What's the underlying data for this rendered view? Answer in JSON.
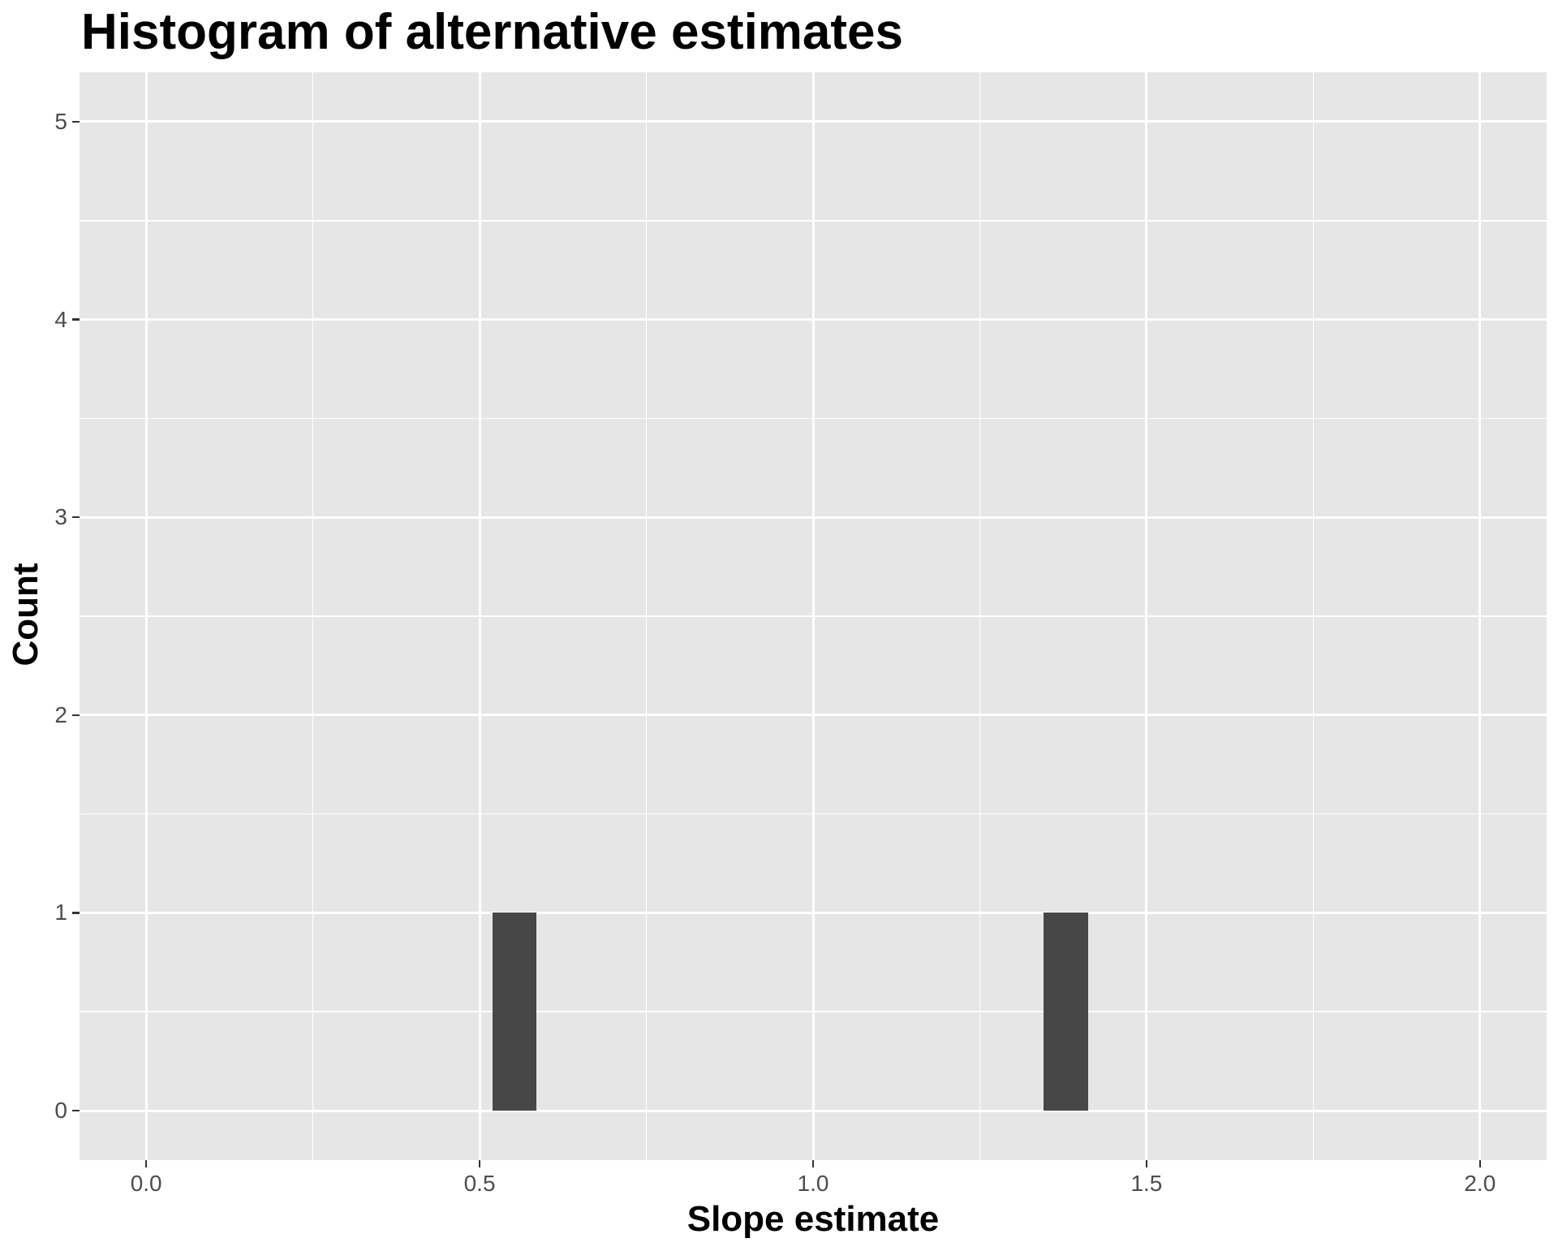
{
  "page": {
    "background": "#FFFFFF"
  },
  "chart_data": {
    "type": "bar",
    "subtype": "histogram",
    "title": "Histogram of alternative estimates",
    "xlabel": "Slope estimate",
    "ylabel": "Count",
    "bars": [
      {
        "x_from": 0.519,
        "x_to": 0.585,
        "count": 1
      },
      {
        "x_from": 1.345,
        "x_to": 1.413,
        "count": 1
      }
    ],
    "bin_width_approx": 0.067,
    "bar_centers": [
      0.55,
      1.38
    ],
    "x_ticks": [
      {
        "value": 0.0,
        "label": "0.0"
      },
      {
        "value": 0.5,
        "label": "0.5"
      },
      {
        "value": 1.0,
        "label": "1.0"
      },
      {
        "value": 1.5,
        "label": "1.5"
      },
      {
        "value": 2.0,
        "label": "2.0"
      }
    ],
    "y_ticks": [
      {
        "value": 0,
        "label": "0"
      },
      {
        "value": 1,
        "label": "1"
      },
      {
        "value": 2,
        "label": "2"
      },
      {
        "value": 3,
        "label": "3"
      },
      {
        "value": 4,
        "label": "4"
      },
      {
        "value": 5,
        "label": "5"
      }
    ],
    "x_minor": [
      0.25,
      0.75,
      1.25,
      1.75
    ],
    "y_minor": [
      0.5,
      1.5,
      2.5,
      3.5,
      4.5
    ],
    "xlim": [
      -0.1,
      2.1
    ],
    "ylim": [
      -0.25,
      5.25
    ],
    "grid": "on",
    "legend": "none",
    "colors": {
      "bar_fill": "#474747",
      "panel_bg": "#E6E6E6",
      "grid_line": "#FFFFFF",
      "tick_text": "#4D4D4D",
      "tick_mark": "#333333",
      "title_text": "#000000",
      "axis_title_text": "#000000",
      "figure_bg": "#FFFFFF"
    }
  }
}
